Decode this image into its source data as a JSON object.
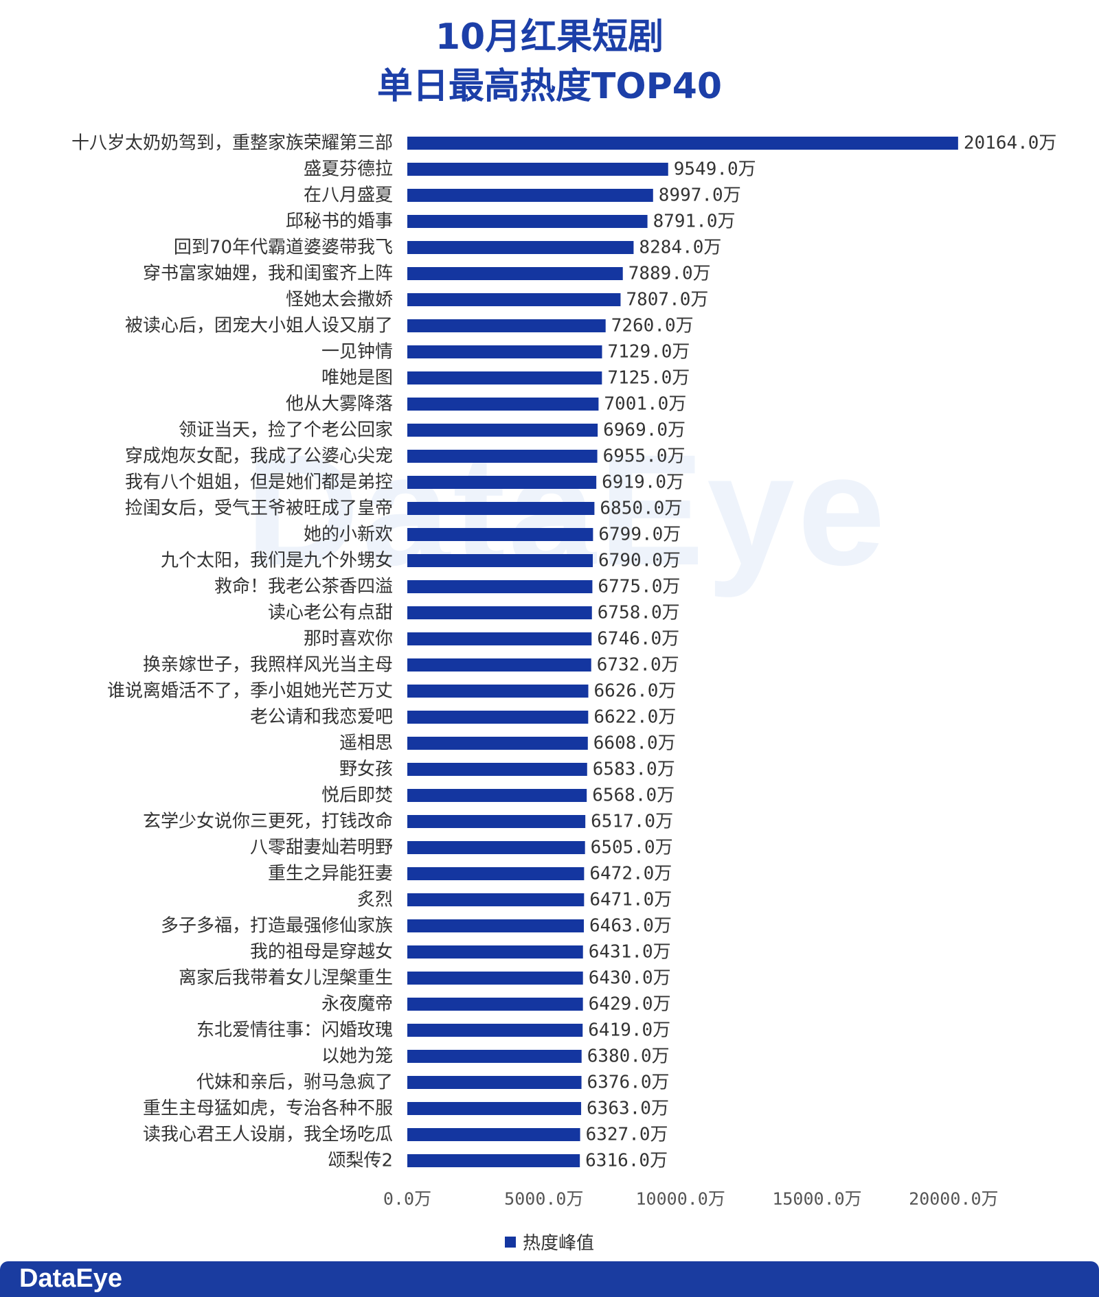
{
  "title_lines": [
    "10月红果短剧",
    "单日最高热度TOP40"
  ],
  "watermark": "DataEye",
  "brand": "DataEye",
  "colors": {
    "title": "#1c3fa8",
    "bar": "#1436a0",
    "footer": "#1a3ca0"
  },
  "chart_data": {
    "type": "bar",
    "orientation": "horizontal",
    "categories": [
      "十八岁太奶奶驾到，重整家族荣耀第三部",
      "盛夏芬德拉",
      "在八月盛夏",
      "邱秘书的婚事",
      "回到70年代霸道婆婆带我飞",
      "穿书富家妯娌，我和闺蜜齐上阵",
      "怪她太会撒娇",
      "被读心后，团宠大小姐人设又崩了",
      "一见钟情",
      "唯她是图",
      "他从大雾降落",
      "领证当天，捡了个老公回家",
      "穿成炮灰女配，我成了公婆心尖宠",
      "我有八个姐姐，但是她们都是弟控",
      "捡闺女后，受气王爷被旺成了皇帝",
      "她的小新欢",
      "九个太阳，我们是九个外甥女",
      "救命！我老公茶香四溢",
      "读心老公有点甜",
      "那时喜欢你",
      "换亲嫁世子，我照样风光当主母",
      "谁说离婚活不了，季小姐她光芒万丈",
      "老公请和我恋爱吧",
      "遥相思",
      "野女孩",
      "悦后即焚",
      "玄学少女说你三更死，打钱改命",
      "八零甜妻灿若明野",
      "重生之异能狂妻",
      "炙烈",
      "多子多福，打造最强修仙家族",
      "我的祖母是穿越女",
      "离家后我带着女儿涅槃重生",
      "永夜魔帝",
      "东北爱情往事：闪婚玫瑰",
      "以她为笼",
      "代妹和亲后，驸马急疯了",
      "重生主母猛如虎，专治各种不服",
      "读我心君王人设崩，我全场吃瓜",
      "颂梨传2"
    ],
    "series": [
      {
        "name": "热度峰值",
        "values": [
          20164.0,
          9549.0,
          8997.0,
          8791.0,
          8284.0,
          7889.0,
          7807.0,
          7260.0,
          7129.0,
          7125.0,
          7001.0,
          6969.0,
          6955.0,
          6919.0,
          6850.0,
          6799.0,
          6790.0,
          6775.0,
          6758.0,
          6746.0,
          6732.0,
          6626.0,
          6622.0,
          6608.0,
          6583.0,
          6568.0,
          6517.0,
          6505.0,
          6472.0,
          6471.0,
          6463.0,
          6431.0,
          6430.0,
          6429.0,
          6419.0,
          6380.0,
          6376.0,
          6363.0,
          6327.0,
          6316.0
        ]
      }
    ],
    "data_labels": [
      "20164.0万",
      "9549.0万",
      "8997.0万",
      "8791.0万",
      "8284.0万",
      "7889.0万",
      "7807.0万",
      "7260.0万",
      "7129.0万",
      "7125.0万",
      "7001.0万",
      "6969.0万",
      "6955.0万",
      "6919.0万",
      "6850.0万",
      "6799.0万",
      "6790.0万",
      "6775.0万",
      "6758.0万",
      "6746.0万",
      "6732.0万",
      "6626.0万",
      "6622.0万",
      "6608.0万",
      "6583.0万",
      "6568.0万",
      "6517.0万",
      "6505.0万",
      "6472.0万",
      "6471.0万",
      "6463.0万",
      "6431.0万",
      "6430.0万",
      "6429.0万",
      "6419.0万",
      "6380.0万",
      "6376.0万",
      "6363.0万",
      "6327.0万",
      "6316.0万"
    ],
    "x_ticks": [
      0,
      5000,
      10000,
      15000,
      20000
    ],
    "x_tick_labels": [
      "0.0万",
      "5000.0万",
      "10000.0万",
      "15000.0万",
      "20000.0万"
    ],
    "xlim": [
      0,
      21500
    ],
    "grid": false,
    "legend": {
      "position": "bottom",
      "entries": [
        "热度峰值"
      ]
    }
  }
}
